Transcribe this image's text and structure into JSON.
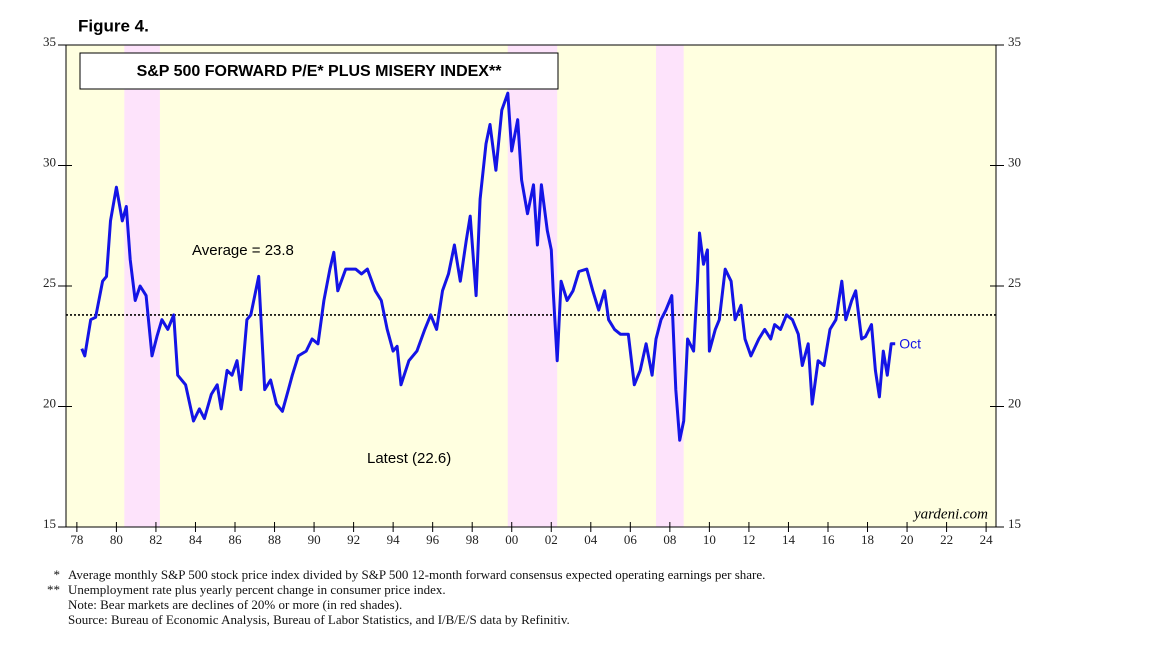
{
  "chart_data": {
    "type": "line",
    "figure_label": "Figure 4.",
    "title": "S&P 500 FORWARD P/E* PLUS MISERY INDEX**",
    "x": [
      1978.25,
      1978.4,
      1978.7,
      1978.95,
      1979.3,
      1979.5,
      1979.7,
      1980.0,
      1980.3,
      1980.5,
      1980.7,
      1980.95,
      1981.2,
      1981.5,
      1981.8,
      1982.05,
      1982.3,
      1982.6,
      1982.9,
      1983.1,
      1983.5,
      1983.9,
      1984.2,
      1984.45,
      1984.8,
      1985.1,
      1985.3,
      1985.6,
      1985.85,
      1986.1,
      1986.3,
      1986.6,
      1986.8,
      1987.2,
      1987.5,
      1987.8,
      1988.1,
      1988.4,
      1988.7,
      1988.9,
      1989.2,
      1989.6,
      1989.9,
      1990.2,
      1990.5,
      1990.8,
      1991.0,
      1991.2,
      1991.6,
      1992.1,
      1992.4,
      1992.7,
      1993.1,
      1993.4,
      1993.7,
      1994.0,
      1994.2,
      1994.4,
      1994.8,
      1995.2,
      1995.6,
      1995.9,
      1996.2,
      1996.5,
      1996.8,
      1997.1,
      1997.4,
      1997.7,
      1997.9,
      1998.2,
      1998.4,
      1998.7,
      1998.9,
      1999.2,
      1999.5,
      1999.8,
      2000.0,
      2000.3,
      2000.5,
      2000.8,
      2001.1,
      2001.3,
      2001.5,
      2001.8,
      2002.0,
      2002.1,
      2002.3,
      2002.5,
      2002.8,
      2003.1,
      2003.4,
      2003.8,
      2004.1,
      2004.4,
      2004.7,
      2004.9,
      2005.2,
      2005.5,
      2005.9,
      2006.2,
      2006.5,
      2006.8,
      2007.1,
      2007.3,
      2007.55,
      2007.8,
      2008.1,
      2008.3,
      2008.5,
      2008.7,
      2008.9,
      2009.2,
      2009.4,
      2009.5,
      2009.7,
      2009.9,
      2010.0,
      2010.3,
      2010.5,
      2010.8,
      2011.1,
      2011.3,
      2011.6,
      2011.8,
      2012.1,
      2012.5,
      2012.8,
      2013.1,
      2013.3,
      2013.6,
      2013.9,
      2014.2,
      2014.5,
      2014.7,
      2015.0,
      2015.2,
      2015.5,
      2015.8,
      2016.1,
      2016.4,
      2016.7,
      2016.9,
      2017.2,
      2017.4,
      2017.7,
      2017.9,
      2018.2,
      2018.4,
      2018.6,
      2018.8,
      2019.0,
      2019.2,
      2019.4
    ],
    "series": [
      {
        "name": "S&P 500 Forward P/E plus Misery Index",
        "color": "#1414e6",
        "values": [
          22.4,
          22.1,
          23.6,
          23.7,
          25.2,
          25.4,
          27.7,
          29.1,
          27.7,
          28.3,
          26.1,
          24.4,
          25.0,
          24.6,
          22.1,
          22.9,
          23.6,
          23.2,
          23.8,
          21.3,
          20.9,
          19.4,
          19.9,
          19.5,
          20.5,
          20.9,
          19.9,
          21.5,
          21.3,
          21.9,
          20.7,
          23.6,
          23.8,
          25.4,
          20.7,
          21.1,
          20.1,
          19.8,
          20.7,
          21.3,
          22.1,
          22.3,
          22.8,
          22.6,
          24.4,
          25.7,
          26.4,
          24.8,
          25.7,
          25.7,
          25.5,
          25.7,
          24.8,
          24.4,
          23.2,
          22.3,
          22.5,
          20.9,
          21.9,
          22.3,
          23.2,
          23.8,
          23.2,
          24.8,
          25.5,
          26.7,
          25.2,
          26.9,
          27.9,
          24.6,
          28.6,
          30.9,
          31.7,
          29.8,
          32.3,
          33.0,
          30.6,
          31.9,
          29.4,
          28.0,
          29.2,
          26.7,
          29.2,
          27.3,
          26.5,
          24.8,
          21.9,
          25.2,
          24.4,
          24.8,
          25.6,
          25.7,
          24.8,
          24.0,
          24.8,
          23.6,
          23.2,
          23.0,
          23.0,
          20.9,
          21.5,
          22.6,
          21.3,
          22.8,
          23.6,
          24.0,
          24.6,
          20.7,
          18.6,
          19.4,
          22.8,
          22.3,
          25.2,
          27.2,
          25.9,
          26.5,
          22.3,
          23.2,
          23.6,
          25.7,
          25.2,
          23.6,
          24.2,
          22.8,
          22.1,
          22.8,
          23.2,
          22.8,
          23.4,
          23.2,
          23.8,
          23.6,
          23.0,
          21.7,
          22.6,
          20.1,
          21.9,
          21.7,
          23.2,
          23.6,
          25.2,
          23.6,
          24.4,
          24.8,
          22.8,
          22.9,
          23.4,
          21.5,
          20.4,
          22.3,
          21.3,
          22.6,
          22.6
        ]
      }
    ],
    "bear_markets": [
      [
        1980.4,
        1982.2
      ],
      [
        1999.8,
        2002.3
      ],
      [
        2007.3,
        2008.7
      ]
    ],
    "average": 23.8,
    "average_label": "Average = 23.8",
    "latest_label": "Latest (22.6)",
    "end_label": "Oct",
    "source_label": "yardeni.com",
    "xlim": [
      1977.45,
      2024.5
    ],
    "ylim": [
      15,
      35
    ],
    "yticks": [
      15,
      20,
      25,
      30,
      35
    ],
    "xticks": [
      {
        "value": 1978,
        "label": "78"
      },
      {
        "value": 1980,
        "label": "80"
      },
      {
        "value": 1982,
        "label": "82"
      },
      {
        "value": 1984,
        "label": "84"
      },
      {
        "value": 1986,
        "label": "86"
      },
      {
        "value": 1988,
        "label": "88"
      },
      {
        "value": 1990,
        "label": "90"
      },
      {
        "value": 1992,
        "label": "92"
      },
      {
        "value": 1994,
        "label": "94"
      },
      {
        "value": 1996,
        "label": "96"
      },
      {
        "value": 1998,
        "label": "98"
      },
      {
        "value": 2000,
        "label": "00"
      },
      {
        "value": 2002,
        "label": "02"
      },
      {
        "value": 2004,
        "label": "04"
      },
      {
        "value": 2006,
        "label": "06"
      },
      {
        "value": 2008,
        "label": "08"
      },
      {
        "value": 2010,
        "label": "10"
      },
      {
        "value": 2012,
        "label": "12"
      },
      {
        "value": 2014,
        "label": "14"
      },
      {
        "value": 2016,
        "label": "16"
      },
      {
        "value": 2018,
        "label": "18"
      },
      {
        "value": 2020,
        "label": "20"
      },
      {
        "value": 2022,
        "label": "22"
      },
      {
        "value": 2024,
        "label": "24"
      }
    ],
    "grid": false,
    "notes": [
      {
        "marker": "*",
        "text": "Average monthly S&P 500 stock price index divided by S&P 500 12-month forward consensus expected operating earnings per share."
      },
      {
        "marker": "**",
        "text": "Unemployment rate plus yearly percent change in consumer price index."
      },
      {
        "text": "Note: Bear markets are declines of 20% or more (in red shades)."
      },
      {
        "text": "Source: Bureau of Economic Analysis, Bureau of Labor Statistics, and I/B/E/S data by Refinitiv."
      }
    ]
  }
}
